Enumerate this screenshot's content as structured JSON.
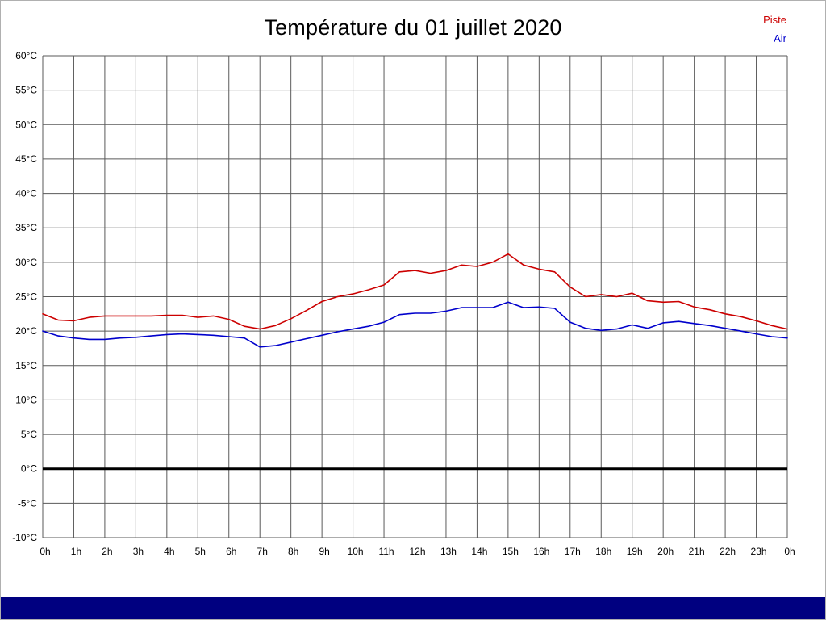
{
  "title": "Température du 01 juillet 2020",
  "legend": {
    "piste": "Piste",
    "air": "Air"
  },
  "colors": {
    "piste": "#cc0000",
    "air": "#0000cc",
    "grid": "#5a5a5a",
    "zero_line": "#000000",
    "footer_bar": "#000080",
    "text": "#000000",
    "background": "#ffffff"
  },
  "chart_data": {
    "type": "line",
    "title": "Température du 01 juillet 2020",
    "xlabel": "",
    "ylabel": "",
    "x_unit": "hour",
    "xlim": [
      0,
      24
    ],
    "ylim": [
      -10,
      60
    ],
    "ytick_step": 5,
    "ytick_suffix": "°C",
    "grid": true,
    "legend_position": "top-right",
    "zero_line": true,
    "xtick_labels": [
      "0h",
      "1h",
      "2h",
      "3h",
      "4h",
      "5h",
      "6h",
      "7h",
      "8h",
      "9h",
      "10h",
      "11h",
      "12h",
      "13h",
      "14h",
      "15h",
      "16h",
      "17h",
      "18h",
      "19h",
      "20h",
      "21h",
      "22h",
      "23h",
      "0h"
    ],
    "x": [
      0,
      0.5,
      1,
      1.5,
      2,
      2.5,
      3,
      3.5,
      4,
      4.5,
      5,
      5.5,
      6,
      6.5,
      7,
      7.5,
      8,
      8.5,
      9,
      9.5,
      10,
      10.5,
      11,
      11.5,
      12,
      12.5,
      13,
      13.5,
      14,
      14.5,
      15,
      15.5,
      16,
      16.5,
      17,
      17.5,
      18,
      18.5,
      19,
      19.5,
      20,
      20.5,
      21,
      21.5,
      22,
      22.5,
      23,
      23.5,
      24
    ],
    "series": [
      {
        "name": "Piste",
        "color": "#cc0000",
        "values": [
          22.5,
          21.6,
          21.5,
          22.0,
          22.2,
          22.2,
          22.2,
          22.2,
          22.3,
          22.3,
          22.0,
          22.2,
          21.7,
          20.7,
          20.3,
          20.8,
          21.8,
          23.0,
          24.3,
          25.0,
          25.4,
          26.0,
          26.7,
          28.6,
          28.8,
          28.4,
          28.8,
          29.6,
          29.4,
          30.0,
          31.2,
          29.6,
          29.0,
          28.6,
          26.4,
          25.0,
          25.3,
          25.0,
          25.5,
          24.4,
          24.2,
          24.3,
          23.5,
          23.1,
          22.5,
          22.1,
          21.5,
          20.8,
          20.3
        ]
      },
      {
        "name": "Air",
        "color": "#0000cc",
        "values": [
          20.0,
          19.3,
          19.0,
          18.8,
          18.8,
          19.0,
          19.1,
          19.3,
          19.5,
          19.6,
          19.5,
          19.4,
          19.2,
          19.0,
          17.7,
          17.9,
          18.4,
          18.9,
          19.4,
          19.9,
          20.3,
          20.7,
          21.3,
          22.4,
          22.6,
          22.6,
          22.9,
          23.4,
          23.4,
          23.4,
          24.2,
          23.4,
          23.5,
          23.3,
          21.3,
          20.4,
          20.1,
          20.3,
          20.9,
          20.4,
          21.2,
          21.4,
          21.1,
          20.8,
          20.4,
          20.0,
          19.6,
          19.2,
          19.0
        ]
      }
    ]
  }
}
